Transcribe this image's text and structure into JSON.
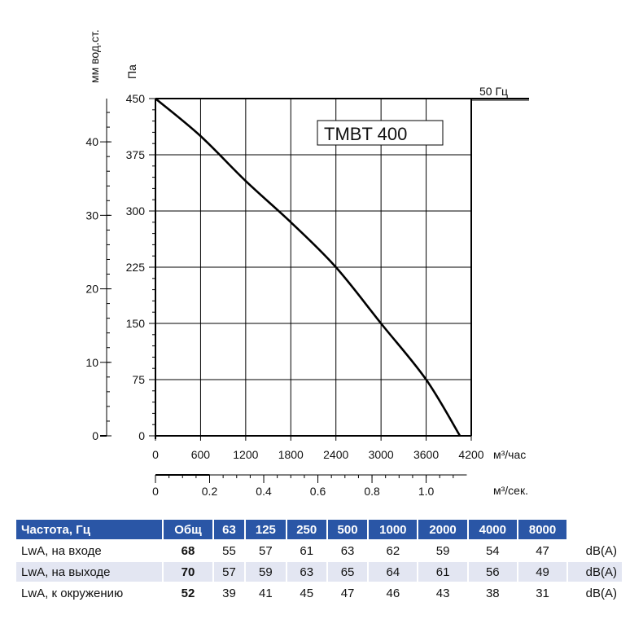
{
  "chart_data": {
    "type": "line",
    "model_label": "TMBT 400",
    "frequency_label": "50 Гц",
    "left_axis_label": "мм вод.ст.",
    "pressure_axis_label": "Па",
    "x_unit_hour": "м³/час",
    "x_unit_sec": "м³/сек.",
    "pressure_ticks": [
      0,
      75,
      150,
      225,
      300,
      375,
      450
    ],
    "mmwc_ticks": [
      0,
      10,
      20,
      30,
      40
    ],
    "flow_hour_ticks": [
      0,
      600,
      1200,
      1800,
      2400,
      3000,
      3600,
      4200
    ],
    "flow_sec_ticks": [
      "0",
      "0.2",
      "0.4",
      "0.6",
      "0.8",
      "1.0"
    ],
    "xlim": [
      0,
      4200
    ],
    "ylim": [
      0,
      450
    ],
    "grid": true,
    "series": [
      {
        "x": [
          0,
          600,
          1200,
          1800,
          2400,
          3000,
          3600,
          4050
        ],
        "y": [
          450,
          400,
          340,
          285,
          225,
          150,
          75,
          0
        ]
      }
    ]
  },
  "table": {
    "headers": [
      "Частота, Гц",
      "Общ",
      "63",
      "125",
      "250",
      "500",
      "1000",
      "2000",
      "4000",
      "8000"
    ],
    "rows": [
      {
        "label": "LwA, на входе",
        "total": "68",
        "values": [
          "55",
          "57",
          "61",
          "63",
          "62",
          "59",
          "54",
          "47"
        ],
        "unit": "dB(A)"
      },
      {
        "label": "LwA, на выходе",
        "total": "70",
        "values": [
          "57",
          "59",
          "63",
          "65",
          "64",
          "61",
          "56",
          "49"
        ],
        "unit": "dB(A)"
      },
      {
        "label": "LwA, к окружению",
        "total": "52",
        "values": [
          "39",
          "41",
          "45",
          "47",
          "46",
          "43",
          "38",
          "31"
        ],
        "unit": "dB(A)"
      }
    ]
  }
}
